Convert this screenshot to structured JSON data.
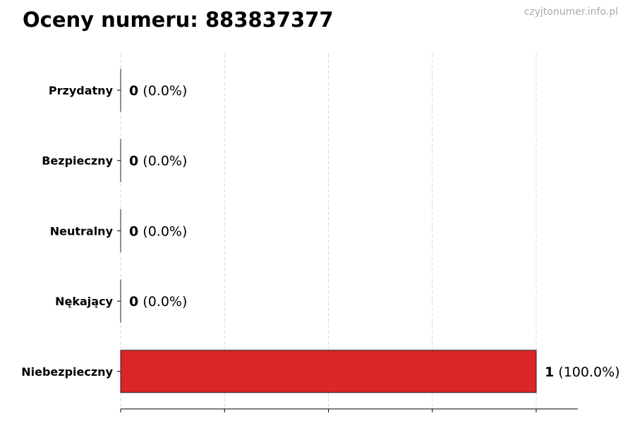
{
  "title": "Oceny numeru: 883837377",
  "watermark": "czyjtonumer.info.pl",
  "chart_data": {
    "type": "bar",
    "orientation": "horizontal",
    "categories": [
      "Przydatny",
      "Bezpieczny",
      "Neutralny",
      "Nękający",
      "Niebezpieczny"
    ],
    "values": [
      0,
      0,
      0,
      0,
      1
    ],
    "value_labels": [
      "0",
      "0",
      "0",
      "0",
      "1"
    ],
    "percent_labels": [
      "(0.0%)",
      "(0.0%)",
      "(0.0%)",
      "(0.0%)",
      "(100.0%)"
    ],
    "colors": [
      "#2ca02c",
      "#2ca02c",
      "#999999",
      "#d62728",
      "#dc2626"
    ],
    "xlim": [
      0,
      1.1
    ],
    "xticks": [
      0,
      0.25,
      0.5,
      0.75,
      1
    ],
    "grid": "x dashed",
    "xlabel": "",
    "ylabel": ""
  }
}
